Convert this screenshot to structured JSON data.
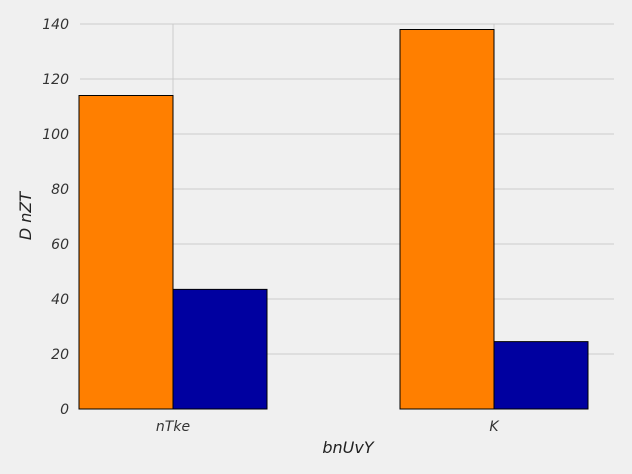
{
  "chart_data": {
    "type": "bar",
    "categories": [
      "nTke",
      "K"
    ],
    "series": [
      {
        "color": "#ff7f00",
        "values": [
          114,
          138
        ]
      },
      {
        "color": "#0000a0",
        "values": [
          43.5,
          24.5
        ]
      }
    ],
    "title": "",
    "xlabel": "bnUvY",
    "ylabel": "D  nZT",
    "ylim": [
      0,
      140
    ],
    "yticks": [
      0,
      20,
      40,
      60,
      80,
      100,
      120,
      140
    ],
    "grid": true,
    "background": "#f0f0f0"
  }
}
